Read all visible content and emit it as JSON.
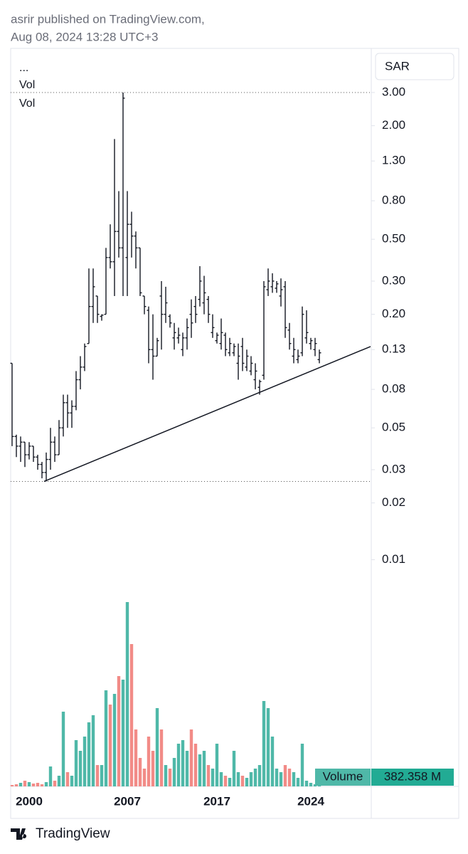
{
  "chart_data": {
    "type": "ohlc",
    "title": "asrir published on TradingView.com,",
    "subtitle": "Aug 08, 2024 13:28 UTC+3",
    "currency": "SAR",
    "legend": [
      "...",
      "Vol",
      "Vol"
    ],
    "branding": "TradingView",
    "log_scale": true,
    "ylim": [
      0.000628,
      5.14
    ],
    "yticks": [
      {
        "value": 3,
        "label": "3.00"
      },
      {
        "value": 2,
        "label": "2.00"
      },
      {
        "value": 1.3,
        "label": "1.30"
      },
      {
        "value": 0.8,
        "label": "0.80"
      },
      {
        "value": 0.5,
        "label": "0.50"
      },
      {
        "value": 0.3,
        "label": "0.30"
      },
      {
        "value": 0.2,
        "label": "0.20"
      },
      0.13,
      0.08,
      0.05,
      0.03,
      0.02,
      0.01
    ],
    "categories": [
      null,
      null,
      null,
      null,
      "2000",
      null,
      null,
      null,
      null,
      null,
      null,
      null,
      null,
      null,
      null,
      null,
      null,
      null,
      null,
      null,
      null,
      null,
      null,
      null,
      null,
      null,
      null,
      "2007",
      null,
      null,
      null,
      null,
      null,
      null,
      null,
      null,
      null,
      null,
      null,
      null,
      null,
      null,
      null,
      null,
      null,
      null,
      null,
      null,
      "2017",
      null,
      null,
      null,
      null,
      null,
      null,
      null,
      null,
      null,
      null,
      null,
      null,
      null,
      null,
      null,
      null,
      null,
      null,
      null,
      null,
      null,
      "2024",
      null,
      null
    ],
    "open": [
      0.11,
      0.045,
      0.04,
      0.042,
      0.036,
      0.04,
      0.035,
      0.032,
      0.029,
      0.034,
      0.042,
      0.036,
      0.05,
      0.068,
      0.06,
      0.065,
      0.09,
      0.105,
      0.14,
      0.22,
      0.25,
      0.195,
      0.2,
      0.4,
      0.38,
      0.55,
      0.45,
      0.4,
      0.6,
      0.52,
      0.45,
      0.25,
      0.21,
      0.13,
      0.12,
      0.25,
      0.2,
      0.195,
      0.15,
      0.15,
      0.13,
      0.15,
      0.2,
      0.22,
      0.24,
      0.23,
      0.24,
      0.16,
      0.145,
      0.14,
      0.155,
      0.125,
      0.125,
      0.11,
      0.135,
      0.105,
      0.1,
      0.09,
      0.082,
      0.095,
      0.27,
      0.28,
      0.275,
      0.25,
      0.28,
      0.165,
      0.12,
      0.115,
      0.125,
      0.15,
      0.14,
      0.13,
      0.115
    ],
    "high": [
      0.11,
      0.046,
      0.045,
      0.042,
      0.042,
      0.04,
      0.036,
      0.033,
      0.037,
      0.05,
      0.045,
      0.055,
      0.075,
      0.075,
      0.07,
      0.1,
      0.12,
      0.14,
      0.35,
      0.35,
      0.25,
      0.2,
      0.45,
      0.6,
      1.7,
      0.9,
      3,
      0.9,
      0.7,
      0.55,
      0.45,
      0.25,
      0.22,
      0.2,
      0.15,
      0.3,
      0.28,
      0.2,
      0.18,
      0.17,
      0.16,
      0.19,
      0.24,
      0.25,
      0.36,
      0.32,
      0.25,
      0.2,
      0.16,
      0.19,
      0.16,
      0.15,
      0.14,
      0.14,
      0.15,
      0.13,
      0.12,
      0.11,
      0.09,
      0.3,
      0.35,
      0.33,
      0.3,
      0.31,
      0.3,
      0.18,
      0.15,
      0.13,
      0.22,
      0.21,
      0.15,
      0.15,
      0.13
    ],
    "low": [
      0.04,
      0.035,
      0.033,
      0.031,
      0.034,
      0.033,
      0.03,
      0.027,
      0.026,
      0.03,
      0.033,
      0.036,
      0.045,
      0.05,
      0.05,
      0.062,
      0.08,
      0.1,
      0.14,
      0.18,
      0.18,
      0.185,
      0.2,
      0.35,
      0.25,
      0.4,
      0.25,
      0.25,
      0.4,
      0.35,
      0.25,
      0.2,
      0.11,
      0.09,
      0.12,
      0.13,
      0.18,
      0.17,
      0.13,
      0.14,
      0.12,
      0.13,
      0.15,
      0.18,
      0.22,
      0.2,
      0.18,
      0.15,
      0.14,
      0.13,
      0.12,
      0.12,
      0.12,
      0.09,
      0.1,
      0.1,
      0.095,
      0.08,
      0.075,
      0.09,
      0.25,
      0.26,
      0.26,
      0.22,
      0.15,
      0.13,
      0.11,
      0.11,
      0.12,
      0.14,
      0.13,
      0.12,
      0.11
    ],
    "close": [
      0.045,
      0.04,
      0.042,
      0.036,
      0.04,
      0.035,
      0.032,
      0.029,
      0.034,
      0.042,
      0.036,
      0.05,
      0.068,
      0.06,
      0.065,
      0.09,
      0.105,
      0.135,
      0.22,
      0.28,
      0.2,
      0.198,
      0.4,
      0.38,
      0.55,
      0.45,
      2.8,
      0.6,
      0.52,
      0.45,
      0.26,
      0.22,
      0.13,
      0.12,
      0.145,
      0.2,
      0.23,
      0.18,
      0.16,
      0.155,
      0.15,
      0.17,
      0.18,
      0.2,
      0.3,
      0.26,
      0.2,
      0.17,
      0.155,
      0.16,
      0.13,
      0.14,
      0.135,
      0.12,
      0.11,
      0.12,
      0.11,
      0.1,
      0.088,
      0.28,
      0.3,
      0.3,
      0.29,
      0.27,
      0.17,
      0.14,
      0.13,
      0.12,
      0.2,
      0.16,
      0.145,
      0.14,
      0.125
    ],
    "up_color": "#4fb8a8",
    "down_color": "#f28b87",
    "bar_color": "#131722",
    "trendline": [
      {
        "x": 7.5,
        "price": 0.026
      },
      {
        "x": 84,
        "price": 0.135
      }
    ],
    "volume": {
      "name": "Volume",
      "current_label": "382.358 M",
      "values": [
        190,
        285,
        475,
        760,
        570,
        380,
        475,
        285,
        570,
        2660,
        760,
        1425,
        9975,
        1900,
        1425,
        6175,
        4750,
        6650,
        8550,
        9500,
        2850,
        2850,
        12825,
        10925,
        12350,
        14725,
        14250,
        24605,
        19000,
        7600,
        3800,
        2375,
        6650,
        4750,
        10450,
        7600,
        2850,
        2375,
        3800,
        5700,
        6175,
        4750,
        7600,
        5700,
        4275,
        4750,
        2850,
        2375,
        5700,
        1900,
        1425,
        1140,
        4750,
        1900,
        1425,
        1140,
        1900,
        2375,
        2850,
        11400,
        10450,
        6650,
        2375,
        1900,
        2850,
        2375,
        1900,
        1140,
        5700,
        760,
        475,
        285,
        382.358
      ]
    }
  }
}
